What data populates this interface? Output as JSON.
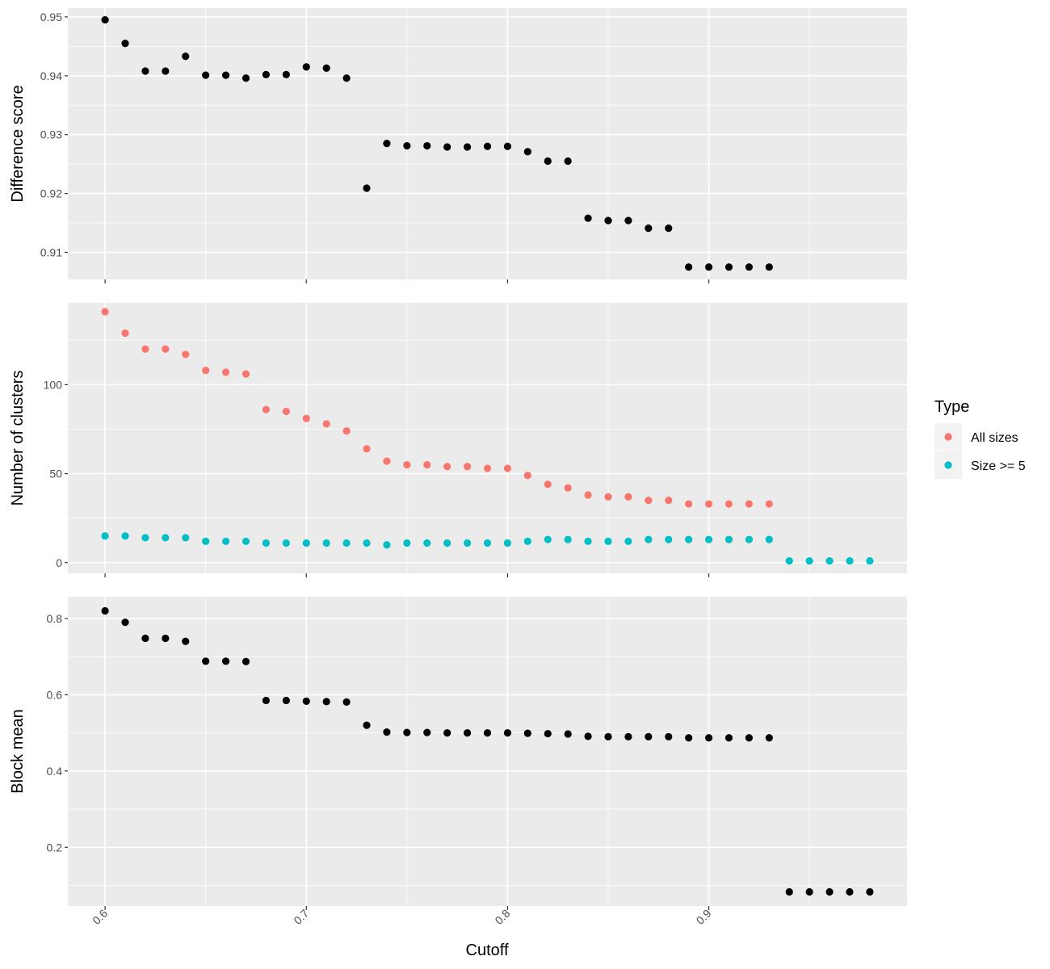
{
  "chart_data": {
    "type": "scatter",
    "x_label": "Cutoff",
    "x_ticks": [
      0.6,
      0.7,
      0.8,
      0.9
    ],
    "x_tick_labels": [
      "0.6",
      "0.7",
      "0.8",
      "0.9"
    ],
    "xlim": [
      0.5815,
      0.9985
    ],
    "background_color": "#ebebeb",
    "grid": true,
    "legend": {
      "title": "Type",
      "placement": "right",
      "entries": [
        {
          "label": "All sizes",
          "color": "#f8766d"
        },
        {
          "label": "Size >= 5",
          "color": "#00bfc4"
        }
      ]
    },
    "panels": [
      {
        "ylabel": "Difference score",
        "ylim": [
          0.9054,
          0.9515
        ],
        "y_ticks": [
          0.91,
          0.92,
          0.93,
          0.94,
          0.95
        ],
        "y_tick_labels": [
          "0.91",
          "0.92",
          "0.93",
          "0.94",
          "0.95"
        ],
        "series": [
          {
            "color": "#000000",
            "x": [
              0.6,
              0.61,
              0.62,
              0.63,
              0.64,
              0.65,
              0.66,
              0.67,
              0.68,
              0.69,
              0.7,
              0.71,
              0.72,
              0.73,
              0.74,
              0.75,
              0.76,
              0.77,
              0.78,
              0.79,
              0.8,
              0.81,
              0.82,
              0.83,
              0.84,
              0.85,
              0.86,
              0.87,
              0.88,
              0.89,
              0.9,
              0.91,
              0.92,
              0.93
            ],
            "y": [
              0.9495,
              0.9455,
              0.9408,
              0.9408,
              0.9433,
              0.9401,
              0.9401,
              0.9396,
              0.9402,
              0.9402,
              0.9415,
              0.9413,
              0.9396,
              0.9209,
              0.9285,
              0.9281,
              0.9281,
              0.9279,
              0.9279,
              0.928,
              0.928,
              0.9271,
              0.9255,
              0.9255,
              0.9158,
              0.9154,
              0.9154,
              0.9141,
              0.9141,
              0.9075,
              0.9075,
              0.9075,
              0.9075,
              0.9075
            ]
          }
        ]
      },
      {
        "ylabel": "Number of clusters",
        "ylim": [
          -6,
          146
        ],
        "y_ticks": [
          0,
          50,
          100
        ],
        "y_tick_labels": [
          "0",
          "50",
          "100"
        ],
        "series": [
          {
            "name": "All sizes",
            "color": "#f8766d",
            "x": [
              0.6,
              0.61,
              0.62,
              0.63,
              0.64,
              0.65,
              0.66,
              0.67,
              0.68,
              0.69,
              0.7,
              0.71,
              0.72,
              0.73,
              0.74,
              0.75,
              0.76,
              0.77,
              0.78,
              0.79,
              0.8,
              0.81,
              0.82,
              0.83,
              0.84,
              0.85,
              0.86,
              0.87,
              0.88,
              0.89,
              0.9,
              0.91,
              0.92,
              0.93
            ],
            "y": [
              141,
              129,
              120,
              120,
              117,
              108,
              107,
              106,
              86,
              85,
              81,
              78,
              74,
              64,
              57,
              55,
              55,
              54,
              54,
              53,
              53,
              49,
              44,
              42,
              38,
              37,
              37,
              35,
              35,
              33,
              33,
              33,
              33,
              33
            ]
          },
          {
            "name": "Size >= 5",
            "color": "#00bfc4",
            "x": [
              0.6,
              0.61,
              0.62,
              0.63,
              0.64,
              0.65,
              0.66,
              0.67,
              0.68,
              0.69,
              0.7,
              0.71,
              0.72,
              0.73,
              0.74,
              0.75,
              0.76,
              0.77,
              0.78,
              0.79,
              0.8,
              0.81,
              0.82,
              0.83,
              0.84,
              0.85,
              0.86,
              0.87,
              0.88,
              0.89,
              0.9,
              0.91,
              0.92,
              0.93,
              0.94,
              0.95,
              0.96,
              0.97,
              0.98
            ],
            "y": [
              15,
              15,
              14,
              14,
              14,
              12,
              12,
              12,
              11,
              11,
              11,
              11,
              11,
              11,
              10,
              11,
              11,
              11,
              11,
              11,
              11,
              12,
              13,
              13,
              12,
              12,
              12,
              13,
              13,
              13,
              13,
              13,
              13,
              13,
              1,
              1,
              1,
              1,
              1
            ]
          }
        ]
      },
      {
        "ylabel": "Block mean",
        "ylim": [
          0.046,
          0.857
        ],
        "y_ticks": [
          0.2,
          0.4,
          0.6,
          0.8
        ],
        "y_tick_labels": [
          "0.2",
          "0.4",
          "0.6",
          "0.8"
        ],
        "series": [
          {
            "color": "#000000",
            "x": [
              0.6,
              0.61,
              0.62,
              0.63,
              0.64,
              0.65,
              0.66,
              0.67,
              0.68,
              0.69,
              0.7,
              0.71,
              0.72,
              0.73,
              0.74,
              0.75,
              0.76,
              0.77,
              0.78,
              0.79,
              0.8,
              0.81,
              0.82,
              0.83,
              0.84,
              0.85,
              0.86,
              0.87,
              0.88,
              0.89,
              0.9,
              0.91,
              0.92,
              0.93,
              0.94,
              0.95,
              0.96,
              0.97,
              0.98
            ],
            "y": [
              0.82,
              0.79,
              0.748,
              0.748,
              0.74,
              0.688,
              0.688,
              0.687,
              0.585,
              0.585,
              0.583,
              0.582,
              0.581,
              0.52,
              0.502,
              0.501,
              0.501,
              0.5,
              0.5,
              0.5,
              0.5,
              0.499,
              0.498,
              0.497,
              0.491,
              0.49,
              0.49,
              0.49,
              0.49,
              0.487,
              0.487,
              0.487,
              0.487,
              0.487,
              0.083,
              0.083,
              0.083,
              0.083,
              0.083
            ]
          }
        ]
      }
    ]
  }
}
